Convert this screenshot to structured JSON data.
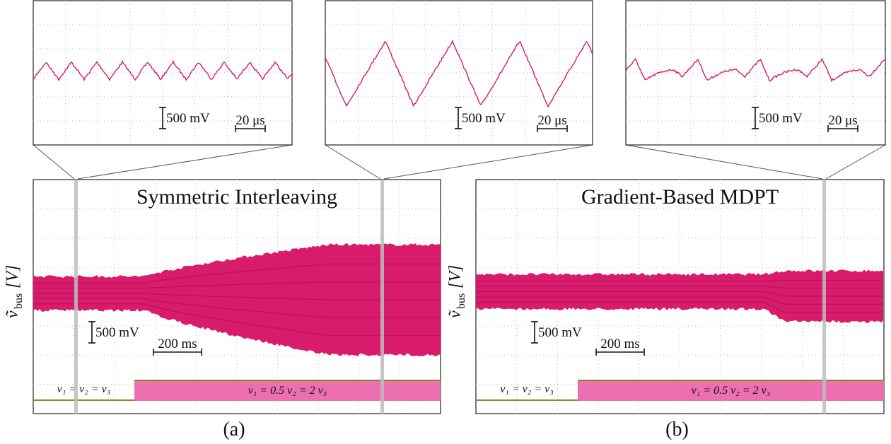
{
  "insets": [
    {
      "voltage_scale": "500 mV",
      "time_scale": "20 μs"
    },
    {
      "voltage_scale": "500 mV",
      "time_scale": "20 μs"
    },
    {
      "voltage_scale": "500 mV",
      "time_scale": "20 μs"
    }
  ],
  "panels": [
    {
      "title": "Symmetric Interleaving",
      "y_label": {
        "symbol": "ṽ",
        "subscript": "bus",
        "unit": "[V]"
      },
      "voltage_scale": "500 mV",
      "time_scale": "200 ms",
      "before_label": "v₁ = v₂ = v₃",
      "after_label": "v₁ = 0.5 v₂ = 2 v₃",
      "caption": "(a)"
    },
    {
      "title": "Gradient-Based MDPT",
      "y_label": {
        "symbol": "ṽ",
        "subscript": "bus",
        "unit": "[V]"
      },
      "voltage_scale": "500 mV",
      "time_scale": "200 ms",
      "before_label": "v₁ = v₂ = v₃",
      "after_label": "v₁ = 0.5 v₂ = 2 v₃",
      "caption": "(b)"
    }
  ]
}
